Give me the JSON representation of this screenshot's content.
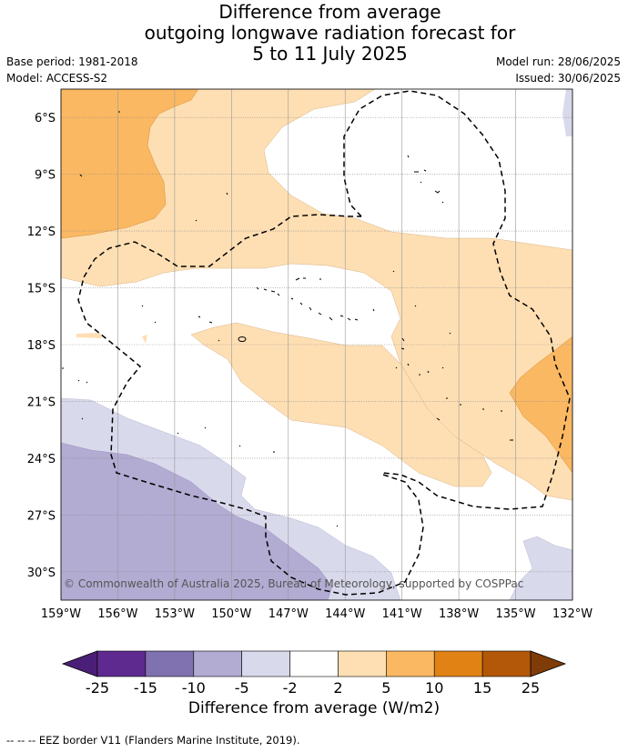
{
  "title": [
    "Difference from average",
    "outgoing longwave radiation forecast for",
    "5 to 11 July 2025"
  ],
  "meta_left": [
    "Base period: 1981-2018",
    "Model: ACCESS-S2"
  ],
  "meta_right": [
    "Model run: 28/06/2025",
    "Issued: 30/06/2025"
  ],
  "map": {
    "lat_labels": [
      "6°S",
      "9°S",
      "12°S",
      "15°S",
      "18°S",
      "21°S",
      "24°S",
      "27°S",
      "30°S"
    ],
    "lat_values": [
      -6,
      -9,
      -12,
      -15,
      -18,
      -21,
      -24,
      -27,
      -30
    ],
    "lon_labels": [
      "159°W",
      "156°W",
      "153°W",
      "150°W",
      "147°W",
      "144°W",
      "141°W",
      "138°W",
      "135°W",
      "132°W"
    ],
    "lon_values": [
      -159,
      -156,
      -153,
      -150,
      -147,
      -144,
      -141,
      -138,
      -135,
      -132
    ],
    "extent": {
      "lon": [
        -159,
        -132
      ],
      "lat": [
        -4.5,
        -31.5
      ]
    },
    "copyright": "© Commonwealth of Australia 2025, Bureau of Meteorology, supported by COSPPac"
  },
  "colorbar": {
    "ticks": [
      "-25",
      "-15",
      "-10",
      "-5",
      "-2",
      "2",
      "5",
      "10",
      "15",
      "25"
    ],
    "colors": [
      "#4b1f77",
      "#5e2a8f",
      "#8071b0",
      "#b2abd2",
      "#d9d9ec",
      "#ffffff",
      "#fedfb3",
      "#fbb862",
      "#e08214",
      "#b25808",
      "#7f3b08"
    ],
    "title": "Difference from average (W/m2)"
  },
  "footnote": "--  --  -- EEZ border V11 (Flanders Marine Institute, 2019)."
}
